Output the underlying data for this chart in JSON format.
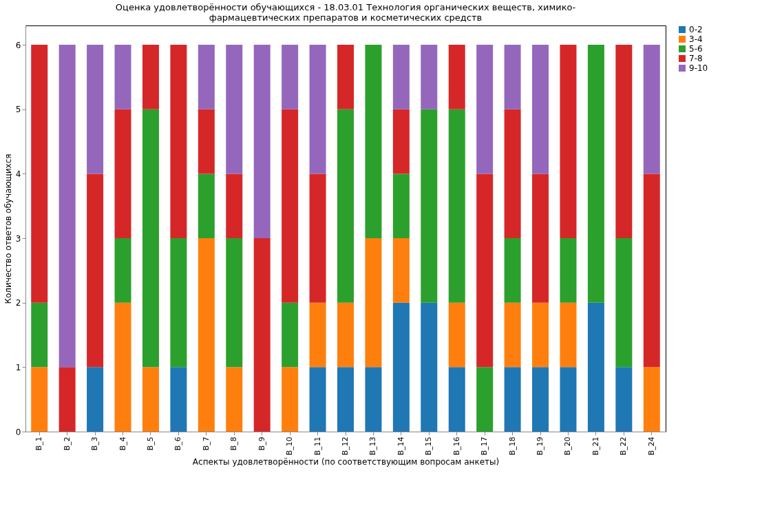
{
  "chart_data": {
    "type": "bar",
    "stacked": true,
    "title": "Оценка удовлетворённости обучающихся - 18.03.01 Технология органических веществ, химико-\nфармацевтических препаратов и косметических средств",
    "xlabel": "Аспекты удовлетворённости (по соответствующим вопросам анкеты)",
    "ylabel": "Количество ответов обучающихся",
    "categories": [
      "В_1",
      "В_2",
      "В_3",
      "В_4",
      "В_5",
      "В_6",
      "В_7",
      "В_8",
      "В_9",
      "В_10",
      "В_11",
      "В_12",
      "В_13",
      "В_14",
      "В_15",
      "В_16",
      "В_17",
      "В_18",
      "В_19",
      "В_20",
      "В_21",
      "В_22",
      "В_24"
    ],
    "series": [
      {
        "name": "0-2",
        "color": "#1f77b4",
        "values": [
          0,
          0,
          1,
          0,
          0,
          1,
          0,
          0,
          0,
          0,
          1,
          1,
          1,
          2,
          2,
          1,
          0,
          1,
          1,
          1,
          2,
          1,
          0
        ]
      },
      {
        "name": "3-4",
        "color": "#ff7f0e",
        "values": [
          1,
          0,
          0,
          2,
          1,
          0,
          3,
          1,
          0,
          1,
          1,
          1,
          2,
          1,
          0,
          1,
          0,
          1,
          1,
          1,
          0,
          0,
          1
        ]
      },
      {
        "name": "5-6",
        "color": "#2ca02c",
        "values": [
          1,
          0,
          0,
          1,
          4,
          2,
          1,
          2,
          0,
          1,
          0,
          3,
          3,
          1,
          3,
          3,
          1,
          1,
          0,
          1,
          4,
          2,
          0
        ]
      },
      {
        "name": "7-8",
        "color": "#d62728",
        "values": [
          4,
          1,
          3,
          2,
          1,
          3,
          1,
          1,
          3,
          3,
          2,
          1,
          0,
          1,
          0,
          1,
          3,
          2,
          2,
          3,
          0,
          3,
          3
        ]
      },
      {
        "name": "9-10",
        "color": "#9467bd",
        "values": [
          0,
          5,
          2,
          1,
          0,
          0,
          1,
          2,
          3,
          1,
          2,
          0,
          0,
          1,
          1,
          0,
          2,
          1,
          2,
          0,
          0,
          0,
          2
        ]
      }
    ],
    "ylim": [
      0,
      6.3
    ],
    "yticks": [
      0,
      1,
      2,
      3,
      4,
      5,
      6
    ],
    "grid": false,
    "legend": "top right"
  }
}
